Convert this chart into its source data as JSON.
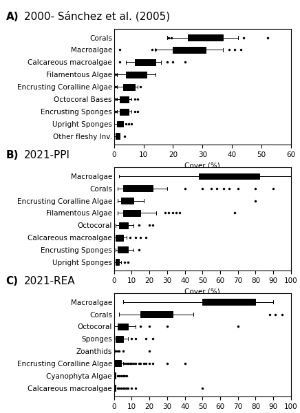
{
  "panel_A": {
    "title_letter": "A)",
    "title_text": "  2000- Sánchez et al. (2005)",
    "xlabel": "Cover (%)",
    "xlim": [
      0,
      60
    ],
    "xticks": [
      0,
      10,
      20,
      30,
      40,
      50,
      60
    ],
    "categories": [
      "Corals",
      "Macroalgae",
      "Calcareous macroalgae",
      "Filamentous Algae",
      "Encrusting Coralline Algae",
      "Octocoral Bases",
      "Encrusting Sponges",
      "Upright Sponges",
      "Other fleshy Inv."
    ],
    "boxes": [
      {
        "whislo": 18,
        "q1": 25,
        "med": 30,
        "q3": 37,
        "whishi": 42,
        "fliers": [
          18.5,
          19.5,
          44,
          52
        ]
      },
      {
        "whislo": 14,
        "q1": 20,
        "med": 24,
        "q3": 31,
        "whishi": 37,
        "fliers": [
          2,
          13,
          14,
          39,
          41,
          43
        ]
      },
      {
        "whislo": 4,
        "q1": 7,
        "med": 10,
        "q3": 14,
        "whishi": 16,
        "fliers": [
          2,
          18,
          20,
          24
        ]
      },
      {
        "whislo": 1,
        "q1": 4,
        "med": 7,
        "q3": 11,
        "whishi": 14,
        "fliers": [
          0.5
        ]
      },
      {
        "whislo": 1,
        "q1": 3,
        "med": 5,
        "q3": 7,
        "whishi": 8,
        "fliers": [
          0.5,
          9
        ]
      },
      {
        "whislo": 1,
        "q1": 2,
        "med": 4,
        "q3": 5,
        "whishi": 6,
        "fliers": [
          0.5,
          7,
          8
        ]
      },
      {
        "whislo": 1,
        "q1": 2,
        "med": 3,
        "q3": 5,
        "whishi": 6,
        "fliers": [
          0.5,
          7,
          8
        ]
      },
      {
        "whislo": 0,
        "q1": 1,
        "med": 2,
        "q3": 3,
        "whishi": 3,
        "fliers": [
          4,
          5,
          6
        ]
      },
      {
        "whislo": 0,
        "q1": 0.5,
        "med": 1,
        "q3": 2,
        "whishi": 2,
        "fliers": [
          3.5
        ]
      }
    ]
  },
  "panel_B": {
    "title_letter": "B)",
    "title_text": "  2021-PPI",
    "xlabel": "Cover (%)",
    "xlim": [
      0,
      100
    ],
    "xticks": [
      0,
      10,
      20,
      30,
      40,
      50,
      60,
      70,
      80,
      90,
      100
    ],
    "categories": [
      "Macroalgae",
      "Corals",
      "Encrusting Coralline Algae",
      "Filamentous Algae",
      "Octocoral",
      "Calcareous macroalgae",
      "Encrusting Sponges",
      "Upright Sponges"
    ],
    "boxes": [
      {
        "whislo": 3,
        "q1": 48,
        "med": 70,
        "q3": 82,
        "whishi": 100,
        "fliers": []
      },
      {
        "whislo": 2,
        "q1": 5,
        "med": 10,
        "q3": 22,
        "whishi": 30,
        "fliers": [
          40,
          50,
          55,
          58,
          62,
          65,
          70,
          80,
          90
        ]
      },
      {
        "whislo": 2,
        "q1": 4,
        "med": 7,
        "q3": 11,
        "whishi": 17,
        "fliers": [
          80
        ]
      },
      {
        "whislo": 2,
        "q1": 5,
        "med": 10,
        "q3": 15,
        "whishi": 24,
        "fliers": [
          29,
          31,
          33,
          35,
          37,
          68
        ]
      },
      {
        "whislo": 1,
        "q1": 3,
        "med": 5,
        "q3": 8,
        "whishi": 11,
        "fliers": [
          14,
          20,
          22
        ]
      },
      {
        "whislo": 0,
        "q1": 1,
        "med": 3,
        "q3": 5,
        "whishi": 7,
        "fliers": [
          9,
          12,
          15,
          18
        ]
      },
      {
        "whislo": 1,
        "q1": 2,
        "med": 5,
        "q3": 8,
        "whishi": 11,
        "fliers": [
          14
        ]
      },
      {
        "whislo": 0,
        "q1": 1,
        "med": 2,
        "q3": 3,
        "whishi": 4,
        "fliers": [
          6,
          8
        ]
      }
    ]
  },
  "panel_C": {
    "title_letter": "C)",
    "title_text": "  2021-REA",
    "xlabel": "Cover (%)",
    "xlim": [
      0,
      100
    ],
    "xticks": [
      0,
      10,
      20,
      30,
      40,
      50,
      60,
      70,
      80,
      90,
      100
    ],
    "categories": [
      "Macroalgae",
      "Corals",
      "Octocoral",
      "Sponges",
      "Zoanthids",
      "Encrusting Coralline Algae",
      "Cyanophyta Algae",
      "Calcareous macroalgae"
    ],
    "boxes": [
      {
        "whislo": 5,
        "q1": 50,
        "med": 68,
        "q3": 80,
        "whishi": 90,
        "fliers": []
      },
      {
        "whislo": 3,
        "q1": 15,
        "med": 22,
        "q3": 33,
        "whishi": 45,
        "fliers": [
          88,
          91,
          95
        ]
      },
      {
        "whislo": 0,
        "q1": 2,
        "med": 4,
        "q3": 8,
        "whishi": 12,
        "fliers": [
          15,
          20,
          30,
          70
        ]
      },
      {
        "whislo": 0,
        "q1": 1,
        "med": 3,
        "q3": 5,
        "whishi": 8,
        "fliers": [
          10,
          12,
          18,
          22
        ]
      },
      {
        "whislo": 0,
        "q1": 0,
        "med": 0,
        "q3": 0,
        "whishi": 0,
        "fliers": [
          1,
          2,
          3,
          5,
          20
        ]
      },
      {
        "whislo": 0,
        "q1": 0.5,
        "med": 2,
        "q3": 4,
        "whishi": 5,
        "fliers": [
          6,
          7,
          8,
          9,
          10,
          11,
          12,
          14,
          15,
          17,
          18,
          20,
          22,
          30,
          40
        ]
      },
      {
        "whislo": 0,
        "q1": 0,
        "med": 0,
        "q3": 1,
        "whishi": 1,
        "fliers": [
          2,
          3,
          4,
          5,
          6,
          7
        ]
      },
      {
        "whislo": 0,
        "q1": 0,
        "med": 0,
        "q3": 1,
        "whishi": 1,
        "fliers": [
          2,
          3,
          4,
          5,
          6,
          7,
          8,
          10,
          12,
          50
        ]
      }
    ]
  },
  "box_facecolor": "#cccccc",
  "box_edgecolor": "#000000",
  "median_color": "#000000",
  "whisker_color": "#000000",
  "flier_color": "#000000",
  "title_fontsize": 11,
  "label_fontsize": 7.5,
  "tick_fontsize": 7.5
}
